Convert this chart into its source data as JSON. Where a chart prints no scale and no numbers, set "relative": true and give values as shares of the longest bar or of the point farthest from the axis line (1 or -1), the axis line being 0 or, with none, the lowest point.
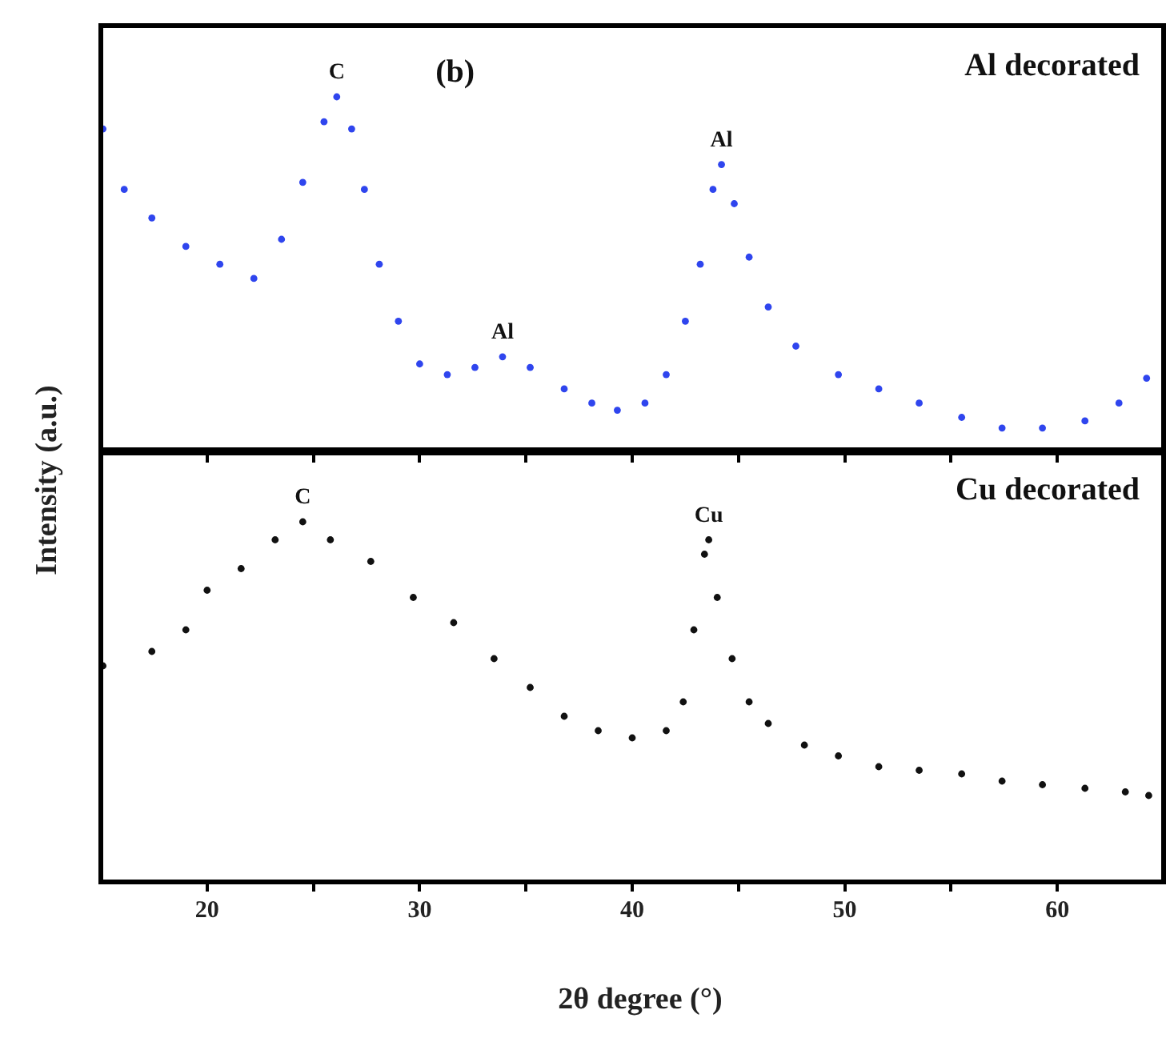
{
  "chart_data": [
    {
      "type": "scatter",
      "relative": true,
      "color": "#2f45ee",
      "marker": "circle",
      "tick_labels": false,
      "ylabel": "Intensity (a.u.)",
      "xlim": [
        15,
        65
      ],
      "xticks": [
        20,
        {
          "value": 25,
          "label": null
        },
        30,
        {
          "value": 35,
          "label": null
        },
        40,
        {
          "value": 45,
          "label": null
        },
        50,
        {
          "value": 55,
          "label": null
        },
        60
      ],
      "x": [
        15.1,
        16.1,
        17.4,
        19.0,
        20.6,
        22.2,
        23.5,
        24.5,
        25.5,
        26.1,
        26.8,
        27.4,
        28.1,
        29.0,
        30.0,
        31.3,
        32.6,
        33.9,
        35.2,
        36.8,
        38.1,
        39.3,
        40.6,
        41.6,
        42.5,
        43.2,
        43.8,
        44.2,
        44.8,
        45.5,
        46.4,
        47.7,
        49.7,
        51.6,
        53.5,
        55.5,
        57.4,
        59.3,
        61.3,
        62.9,
        64.2
      ],
      "values": [
        0.91,
        0.74,
        0.66,
        0.58,
        0.53,
        0.49,
        0.6,
        0.76,
        0.93,
        1,
        0.91,
        0.74,
        0.53,
        0.37,
        0.25,
        0.22,
        0.24,
        0.27,
        0.24,
        0.18,
        0.14,
        0.12,
        0.14,
        0.22,
        0.37,
        0.53,
        0.74,
        0.81,
        0.7,
        0.55,
        0.41,
        0.3,
        0.22,
        0.18,
        0.14,
        0.1,
        0.07,
        0.07,
        0.09,
        0.14,
        0.21
      ],
      "annotations": [
        {
          "text": "C",
          "x": 26.1,
          "y": 1
        },
        {
          "text": "Al",
          "x": 33.9,
          "y": 0.27
        },
        {
          "text": "Al",
          "x": 44.2,
          "y": 0.81
        },
        "(b)",
        "Al decorated"
      ]
    },
    {
      "type": "scatter",
      "relative": true,
      "color": "#111111",
      "marker": "circle",
      "tick_labels": "x",
      "xlabel": "2θ degree (°)",
      "xlim": [
        15,
        65
      ],
      "xticks": [
        20,
        {
          "value": 25,
          "label": null
        },
        30,
        {
          "value": 35,
          "label": null
        },
        40,
        {
          "value": 45,
          "label": null
        },
        50,
        {
          "value": 55,
          "label": null
        },
        60
      ],
      "x": [
        15.1,
        17.4,
        19.0,
        20.0,
        21.6,
        23.2,
        24.5,
        25.8,
        27.7,
        29.7,
        31.6,
        33.5,
        35.2,
        36.8,
        38.4,
        40.0,
        41.6,
        42.4,
        42.9,
        43.4,
        43.6,
        44.0,
        44.7,
        45.5,
        46.4,
        48.1,
        49.7,
        51.6,
        53.5,
        55.5,
        57.4,
        59.3,
        61.3,
        63.2,
        64.3
      ],
      "values": [
        0.6,
        0.64,
        0.7,
        0.81,
        0.87,
        0.95,
        1,
        0.95,
        0.89,
        0.79,
        0.72,
        0.62,
        0.54,
        0.46,
        0.42,
        0.4,
        0.42,
        0.5,
        0.7,
        0.91,
        0.95,
        0.79,
        0.62,
        0.5,
        0.44,
        0.38,
        0.35,
        0.32,
        0.31,
        0.3,
        0.28,
        0.27,
        0.26,
        0.25,
        0.24
      ],
      "annotations": [
        {
          "text": "C",
          "x": 24.5,
          "y": 1
        },
        {
          "text": "Cu",
          "x": 43.6,
          "y": 0.95
        },
        "Cu decorated"
      ]
    }
  ]
}
